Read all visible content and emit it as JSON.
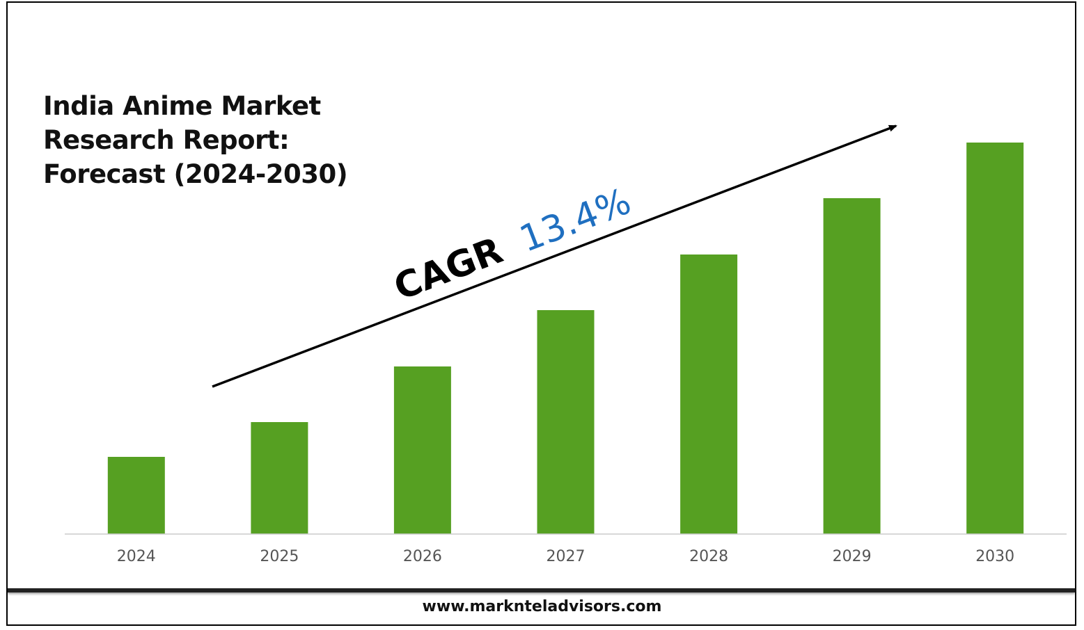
{
  "header": {
    "title_lines": [
      "India Anime Market",
      "Research Report:",
      "Forecast (2024-2030)"
    ]
  },
  "annotation": {
    "prefix": "CAGR",
    "value": "13.4%",
    "value_color": "#1f6fc0"
  },
  "footer": {
    "website": "www.marknteladvisors.com"
  },
  "colors": {
    "bar": "#56a022",
    "axis": "#cccccc",
    "tick_text": "#555555"
  },
  "chart_data": {
    "type": "bar",
    "categories": [
      "2024",
      "2025",
      "2026",
      "2027",
      "2028",
      "2029",
      "2030"
    ],
    "values": [
      111,
      161,
      241,
      322,
      402,
      483,
      563
    ],
    "ylim": [
      0,
      600
    ],
    "grid": false,
    "legend": "none",
    "xlabel": "",
    "ylabel": ""
  }
}
